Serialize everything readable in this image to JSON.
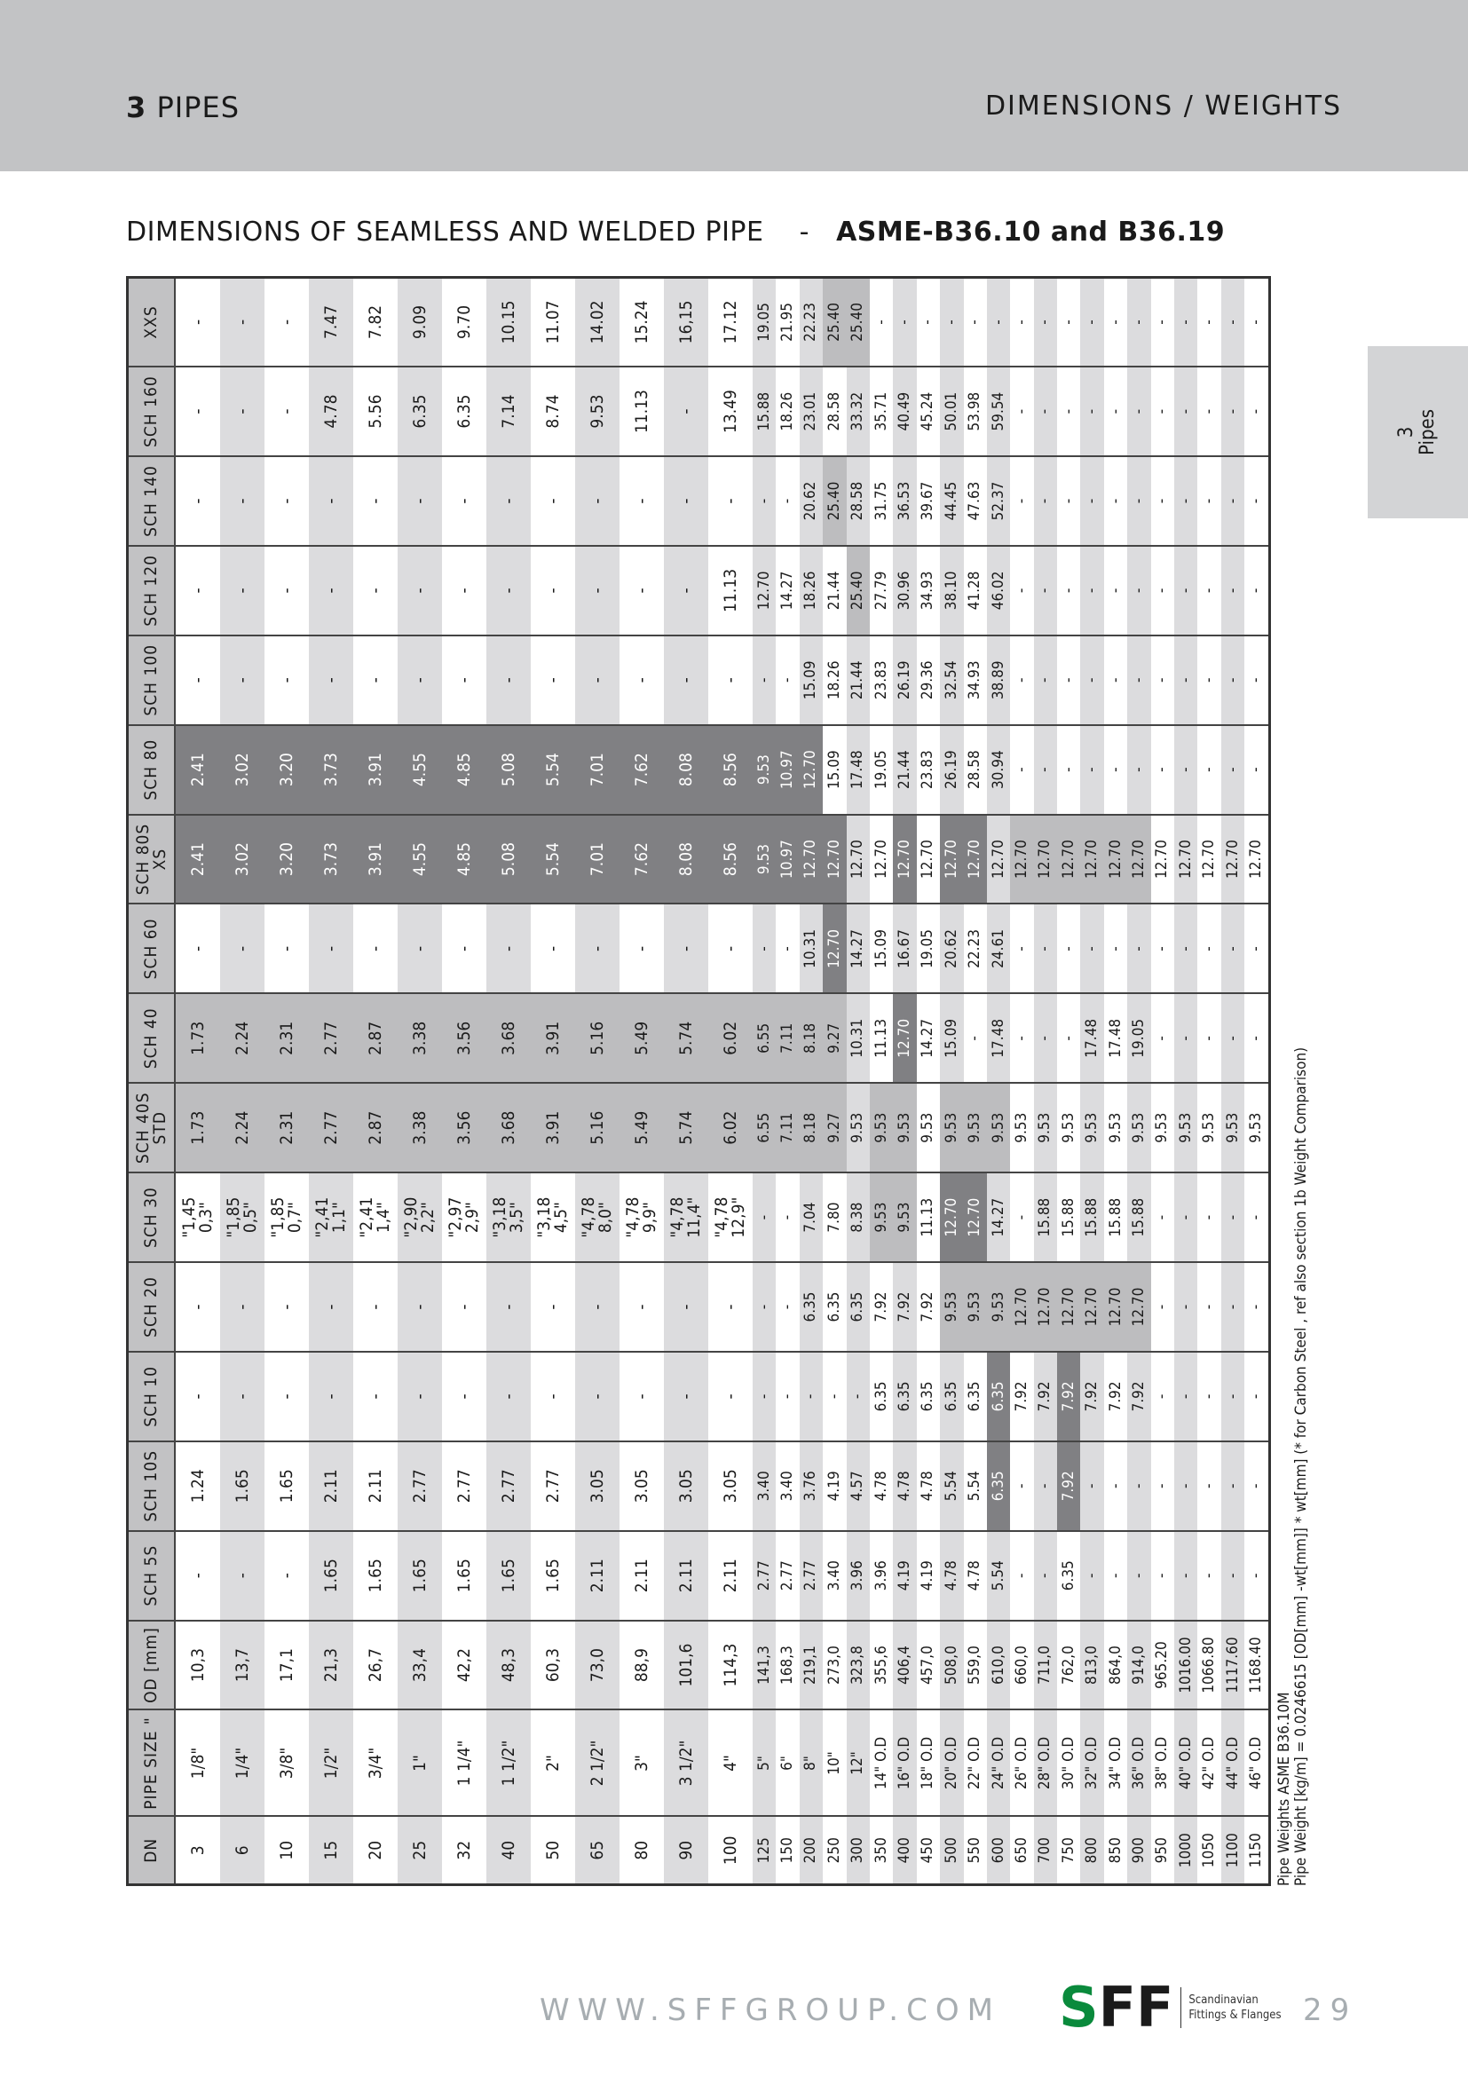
{
  "header": {
    "section_number": "3",
    "section_name": "PIPES",
    "right_title": "DIMENSIONS / WEIGHTS"
  },
  "title": {
    "main": "DIMENSIONS OF SEAMLESS AND WELDED PIPE",
    "separator": "-",
    "standard": "ASME-B36.10 and B36.19"
  },
  "side_tab": {
    "number": "3",
    "label": "Pipes"
  },
  "colors": {
    "band": "#c2c3c5",
    "stripe": "#dcdcde",
    "highlight_medium": "#bdbdbf",
    "highlight_dark": "#808083",
    "logo_green": "#0a8a3c"
  },
  "table": {
    "columns": [
      "DN",
      "PIPE SIZE \"",
      "OD [mm]",
      "SCH 5S",
      "SCH 10S",
      "SCH 10",
      "SCH 20",
      "SCH 30",
      "SCH 40S\nSTD",
      "SCH 40",
      "SCH 60",
      "SCH 80S\nXS",
      "SCH 80",
      "SCH 100",
      "SCH 120",
      "SCH 140",
      "SCH 160",
      "XXS"
    ],
    "rows": [
      [
        "3",
        "1/8\"",
        "10,3",
        "-",
        "1.24",
        "-",
        "-",
        "\"1,45\n0,3\"",
        "1.73",
        "1.73",
        "-",
        "2.41",
        "2.41",
        "-",
        "-",
        "-",
        "-",
        "-"
      ],
      [
        "6",
        "1/4\"",
        "13,7",
        "-",
        "1.65",
        "-",
        "-",
        "\"1,85\n0,5\"",
        "2.24",
        "2.24",
        "-",
        "3.02",
        "3.02",
        "-",
        "-",
        "-",
        "-",
        "-"
      ],
      [
        "10",
        "3/8\"",
        "17,1",
        "-",
        "1.65",
        "-",
        "-",
        "\"1,85\n0,7\"",
        "2.31",
        "2.31",
        "-",
        "3.20",
        "3.20",
        "-",
        "-",
        "-",
        "-",
        "-"
      ],
      [
        "15",
        "1/2\"",
        "21,3",
        "1.65",
        "2.11",
        "-",
        "-",
        "\"2,41\n1,1\"",
        "2.77",
        "2.77",
        "-",
        "3.73",
        "3.73",
        "-",
        "-",
        "-",
        "4.78",
        "7.47"
      ],
      [
        "20",
        "3/4\"",
        "26,7",
        "1.65",
        "2.11",
        "-",
        "-",
        "\"2,41\n1,4\"",
        "2.87",
        "2.87",
        "-",
        "3.91",
        "3.91",
        "-",
        "-",
        "-",
        "5.56",
        "7.82"
      ],
      [
        "25",
        "1\"",
        "33,4",
        "1.65",
        "2.77",
        "-",
        "-",
        "\"2,90\n2,2\"",
        "3.38",
        "3.38",
        "-",
        "4.55",
        "4.55",
        "-",
        "-",
        "-",
        "6.35",
        "9.09"
      ],
      [
        "32",
        "1 1/4\"",
        "42,2",
        "1.65",
        "2.77",
        "-",
        "-",
        "\"2,97\n2,9\"",
        "3.56",
        "3.56",
        "-",
        "4.85",
        "4.85",
        "-",
        "-",
        "-",
        "6.35",
        "9.70"
      ],
      [
        "40",
        "1 1/2\"",
        "48,3",
        "1.65",
        "2.77",
        "-",
        "-",
        "\"3,18\n3,5\"",
        "3.68",
        "3.68",
        "-",
        "5.08",
        "5.08",
        "-",
        "-",
        "-",
        "7.14",
        "10.15"
      ],
      [
        "50",
        "2\"",
        "60,3",
        "1.65",
        "2.77",
        "-",
        "-",
        "\"3,18\n4,5\"",
        "3.91",
        "3.91",
        "-",
        "5.54",
        "5.54",
        "-",
        "-",
        "-",
        "8.74",
        "11.07"
      ],
      [
        "65",
        "2 1/2\"",
        "73,0",
        "2.11",
        "3.05",
        "-",
        "-",
        "\"4,78\n8,0\"",
        "5.16",
        "5.16",
        "-",
        "7.01",
        "7.01",
        "-",
        "-",
        "-",
        "9.53",
        "14.02"
      ],
      [
        "80",
        "3\"",
        "88,9",
        "2.11",
        "3.05",
        "-",
        "-",
        "\"4,78\n9,9\"",
        "5.49",
        "5.49",
        "-",
        "7.62",
        "7.62",
        "-",
        "-",
        "-",
        "11.13",
        "15.24"
      ],
      [
        "90",
        "3 1/2\"",
        "101,6",
        "2.11",
        "3.05",
        "-",
        "-",
        "\"4,78\n11,4\"",
        "5.74",
        "5.74",
        "-",
        "8.08",
        "8.08",
        "-",
        "-",
        "-",
        "-",
        "16,15"
      ],
      [
        "100",
        "4\"",
        "114,3",
        "2.11",
        "3.05",
        "-",
        "-",
        "\"4,78\n12,9\"",
        "6.02",
        "6.02",
        "-",
        "8.56",
        "8.56",
        "-",
        "11.13",
        "-",
        "13.49",
        "17.12"
      ],
      [
        "125",
        "5\"",
        "141,3",
        "2.77",
        "3.40",
        "-",
        "-",
        "-",
        "6.55",
        "6.55",
        "-",
        "9.53",
        "9.53",
        "-",
        "12.70",
        "-",
        "15.88",
        "19.05"
      ],
      [
        "150",
        "6\"",
        "168,3",
        "2.77",
        "3.40",
        "-",
        "-",
        "-",
        "7.11",
        "7.11",
        "-",
        "10.97",
        "10.97",
        "-",
        "14.27",
        "-",
        "18.26",
        "21.95"
      ],
      [
        "200",
        "8\"",
        "219,1",
        "2.77",
        "3.76",
        "-",
        "6.35",
        "7.04",
        "8.18",
        "8.18",
        "10.31",
        "12.70",
        "12.70",
        "15.09",
        "18.26",
        "20.62",
        "23.01",
        "22.23"
      ],
      [
        "250",
        "10\"",
        "273,0",
        "3.40",
        "4.19",
        "-",
        "6.35",
        "7.80",
        "9.27",
        "9.27",
        "12.70",
        "12.70",
        "15.09",
        "18.26",
        "21.44",
        "25.40",
        "28.58",
        "25.40"
      ],
      [
        "300",
        "12\"",
        "323,8",
        "3.96",
        "4.57",
        "-",
        "6.35",
        "8.38",
        "9.53",
        "10.31",
        "14.27",
        "12.70",
        "17.48",
        "21.44",
        "25.40",
        "28.58",
        "33.32",
        "25.40"
      ],
      [
        "350",
        "14\" O.D",
        "355,6",
        "3.96",
        "4.78",
        "6.35",
        "7.92",
        "9.53",
        "9.53",
        "11.13",
        "15.09",
        "12.70",
        "19.05",
        "23.83",
        "27.79",
        "31.75",
        "35.71",
        "-"
      ],
      [
        "400",
        "16\" O.D",
        "406,4",
        "4.19",
        "4.78",
        "6.35",
        "7.92",
        "9.53",
        "9.53",
        "12.70",
        "16.67",
        "12.70",
        "21.44",
        "26.19",
        "30.96",
        "36.53",
        "40.49",
        "-"
      ],
      [
        "450",
        "18\" O.D",
        "457,0",
        "4.19",
        "4.78",
        "6.35",
        "7.92",
        "11.13",
        "9.53",
        "14.27",
        "19.05",
        "12.70",
        "23.83",
        "29.36",
        "34.93",
        "39.67",
        "45.24",
        "-"
      ],
      [
        "500",
        "20\" O.D",
        "508,0",
        "4.78",
        "5.54",
        "6.35",
        "9.53",
        "12.70",
        "9.53",
        "15.09",
        "20.62",
        "12.70",
        "26.19",
        "32.54",
        "38.10",
        "44.45",
        "50.01",
        "-"
      ],
      [
        "550",
        "22\" O.D",
        "559,0",
        "4.78",
        "5.54",
        "6.35",
        "9.53",
        "12.70",
        "9.53",
        "-",
        "22.23",
        "12.70",
        "28.58",
        "34.93",
        "41.28",
        "47.63",
        "53.98",
        "-"
      ],
      [
        "600",
        "24\" O.D",
        "610,0",
        "5.54",
        "6.35",
        "6.35",
        "9.53",
        "14.27",
        "9.53",
        "17.48",
        "24.61",
        "12.70",
        "30.94",
        "38.89",
        "46.02",
        "52.37",
        "59.54",
        "-"
      ],
      [
        "650",
        "26\" O.D",
        "660,0",
        "-",
        "-",
        "7.92",
        "12.70",
        "-",
        "9.53",
        "-",
        "-",
        "12.70",
        "-",
        "-",
        "-",
        "-",
        "-",
        "-"
      ],
      [
        "700",
        "28\" O.D",
        "711,0",
        "-",
        "-",
        "7.92",
        "12.70",
        "15.88",
        "9.53",
        "-",
        "-",
        "12.70",
        "-",
        "-",
        "-",
        "-",
        "-",
        "-"
      ],
      [
        "750",
        "30\" O.D",
        "762,0",
        "6.35",
        "7.92",
        "7.92",
        "12.70",
        "15.88",
        "9.53",
        "-",
        "-",
        "12.70",
        "-",
        "-",
        "-",
        "-",
        "-",
        "-"
      ],
      [
        "800",
        "32\" O.D",
        "813,0",
        "-",
        "-",
        "7.92",
        "12.70",
        "15.88",
        "9.53",
        "17.48",
        "-",
        "12.70",
        "-",
        "-",
        "-",
        "-",
        "-",
        "-"
      ],
      [
        "850",
        "34\" O.D",
        "864,0",
        "-",
        "-",
        "7.92",
        "12.70",
        "15.88",
        "9.53",
        "17.48",
        "-",
        "12.70",
        "-",
        "-",
        "-",
        "-",
        "-",
        "-"
      ],
      [
        "900",
        "36\" O.D",
        "914,0",
        "-",
        "-",
        "7.92",
        "12.70",
        "15.88",
        "9.53",
        "19.05",
        "-",
        "12.70",
        "-",
        "-",
        "-",
        "-",
        "-",
        "-"
      ],
      [
        "950",
        "38\" O.D",
        "965.20",
        "-",
        "-",
        "-",
        "-",
        "-",
        "9.53",
        "-",
        "-",
        "12.70",
        "-",
        "-",
        "-",
        "-",
        "-",
        "-"
      ],
      [
        "1000",
        "40\" O.D",
        "1016.00",
        "-",
        "-",
        "-",
        "-",
        "-",
        "9.53",
        "-",
        "-",
        "12.70",
        "-",
        "-",
        "-",
        "-",
        "-",
        "-"
      ],
      [
        "1050",
        "42\" O.D",
        "1066.80",
        "-",
        "-",
        "-",
        "-",
        "-",
        "9.53",
        "-",
        "-",
        "12.70",
        "-",
        "-",
        "-",
        "-",
        "-",
        "-"
      ],
      [
        "1100",
        "44\" O.D",
        "1117.60",
        "-",
        "-",
        "-",
        "-",
        "-",
        "9.53",
        "-",
        "-",
        "12.70",
        "-",
        "-",
        "-",
        "-",
        "-",
        "-"
      ],
      [
        "1150",
        "46\" O.D",
        "1168.40",
        "-",
        "-",
        "-",
        "-",
        "-",
        "9.53",
        "-",
        "-",
        "12.70",
        "-",
        "-",
        "-",
        "-",
        "-",
        "-"
      ]
    ]
  },
  "notes": {
    "line1": "Pipe Weights ASME B36.10M",
    "line2": "Pipe Weight [kg/m] = 0.0246615 [OD[mm] -wt[mm]] * wt[mm] (* for Carbon Steel , ref also section 1b Weight Comparison)"
  },
  "footer": {
    "url": "WWW.SFFGROUP.COM",
    "logo_letters": "SFF",
    "logo_line1": "Scandinavian",
    "logo_line2": "Fittings & Flanges",
    "page_number": "29"
  }
}
